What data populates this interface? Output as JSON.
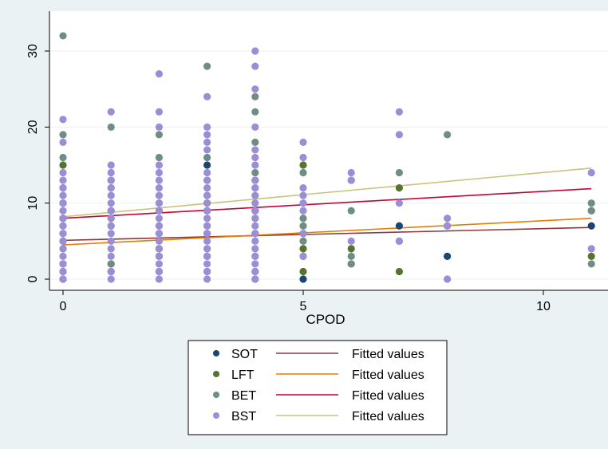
{
  "chart_data": {
    "type": "scatter",
    "xlabel": "CPOD",
    "ylabel": "",
    "xlim": [
      -0.4,
      11.4
    ],
    "ylim": [
      -1.5,
      33
    ],
    "xticks": [
      0,
      5,
      10
    ],
    "yticks": [
      0,
      10,
      20,
      30
    ],
    "grid": "horizontal",
    "legend_position": "bottom",
    "series": [
      {
        "name": "SOT",
        "color": "#1a476f",
        "points": [
          [
            0,
            0
          ],
          [
            0,
            2
          ],
          [
            0,
            5
          ],
          [
            0,
            8
          ],
          [
            1,
            1
          ],
          [
            1,
            9
          ],
          [
            2,
            4
          ],
          [
            3,
            3
          ],
          [
            3,
            9
          ],
          [
            3,
            15
          ],
          [
            4,
            9
          ],
          [
            5,
            0
          ],
          [
            7,
            7
          ],
          [
            8,
            3
          ],
          [
            11,
            7
          ]
        ]
      },
      {
        "name": "LFT",
        "color": "#55752f",
        "points": [
          [
            0,
            1
          ],
          [
            0,
            4
          ],
          [
            0,
            6
          ],
          [
            0,
            10
          ],
          [
            0,
            15
          ],
          [
            1,
            2
          ],
          [
            1,
            7
          ],
          [
            1,
            13
          ],
          [
            2,
            1
          ],
          [
            2,
            3
          ],
          [
            2,
            7
          ],
          [
            2,
            9
          ],
          [
            3,
            1
          ],
          [
            3,
            6
          ],
          [
            3,
            10
          ],
          [
            4,
            1
          ],
          [
            4,
            6
          ],
          [
            4,
            9
          ],
          [
            4,
            13
          ],
          [
            5,
            1
          ],
          [
            5,
            4
          ],
          [
            5,
            6
          ],
          [
            5,
            15
          ],
          [
            6,
            2
          ],
          [
            6,
            4
          ],
          [
            7,
            1
          ],
          [
            7,
            12
          ],
          [
            11,
            3
          ],
          [
            11,
            9
          ]
        ]
      },
      {
        "name": "BET",
        "color": "#6e8e84",
        "points": [
          [
            0,
            2
          ],
          [
            0,
            5
          ],
          [
            0,
            7
          ],
          [
            0,
            10
          ],
          [
            0,
            12
          ],
          [
            0,
            16
          ],
          [
            0,
            19
          ],
          [
            0,
            32
          ],
          [
            1,
            2
          ],
          [
            1,
            8
          ],
          [
            1,
            12
          ],
          [
            1,
            20
          ],
          [
            2,
            1
          ],
          [
            2,
            6
          ],
          [
            2,
            10
          ],
          [
            2,
            16
          ],
          [
            2,
            19
          ],
          [
            3,
            4
          ],
          [
            3,
            7
          ],
          [
            3,
            11
          ],
          [
            3,
            13
          ],
          [
            3,
            16
          ],
          [
            3,
            28
          ],
          [
            4,
            0
          ],
          [
            4,
            3
          ],
          [
            4,
            8
          ],
          [
            4,
            12
          ],
          [
            4,
            14
          ],
          [
            4,
            18
          ],
          [
            4,
            22
          ],
          [
            4,
            24
          ],
          [
            5,
            3
          ],
          [
            5,
            5
          ],
          [
            5,
            7
          ],
          [
            5,
            8
          ],
          [
            5,
            14
          ],
          [
            6,
            2
          ],
          [
            6,
            3
          ],
          [
            6,
            9
          ],
          [
            6,
            13
          ],
          [
            7,
            5
          ],
          [
            7,
            14
          ],
          [
            8,
            7
          ],
          [
            8,
            19
          ],
          [
            11,
            2
          ],
          [
            11,
            9
          ],
          [
            11,
            10
          ]
        ]
      },
      {
        "name": "BST",
        "color": "#9a8fd6",
        "points": [
          [
            0,
            0
          ],
          [
            0,
            1
          ],
          [
            0,
            2
          ],
          [
            0,
            3
          ],
          [
            0,
            4
          ],
          [
            0,
            5
          ],
          [
            0,
            6
          ],
          [
            0,
            7
          ],
          [
            0,
            8
          ],
          [
            0,
            9
          ],
          [
            0,
            10
          ],
          [
            0,
            11
          ],
          [
            0,
            12
          ],
          [
            0,
            13
          ],
          [
            0,
            14
          ],
          [
            0,
            18
          ],
          [
            0,
            21
          ],
          [
            1,
            0
          ],
          [
            1,
            1
          ],
          [
            1,
            3
          ],
          [
            1,
            4
          ],
          [
            1,
            5
          ],
          [
            1,
            6
          ],
          [
            1,
            7
          ],
          [
            1,
            8
          ],
          [
            1,
            9
          ],
          [
            1,
            10
          ],
          [
            1,
            11
          ],
          [
            1,
            12
          ],
          [
            1,
            13
          ],
          [
            1,
            14
          ],
          [
            1,
            15
          ],
          [
            1,
            22
          ],
          [
            2,
            0
          ],
          [
            2,
            1
          ],
          [
            2,
            2
          ],
          [
            2,
            3
          ],
          [
            2,
            4
          ],
          [
            2,
            5
          ],
          [
            2,
            6
          ],
          [
            2,
            7
          ],
          [
            2,
            8
          ],
          [
            2,
            9
          ],
          [
            2,
            10
          ],
          [
            2,
            11
          ],
          [
            2,
            12
          ],
          [
            2,
            13
          ],
          [
            2,
            14
          ],
          [
            2,
            15
          ],
          [
            2,
            20
          ],
          [
            2,
            22
          ],
          [
            2,
            27
          ],
          [
            3,
            0
          ],
          [
            3,
            1
          ],
          [
            3,
            2
          ],
          [
            3,
            3
          ],
          [
            3,
            4
          ],
          [
            3,
            5
          ],
          [
            3,
            6
          ],
          [
            3,
            7
          ],
          [
            3,
            8
          ],
          [
            3,
            9
          ],
          [
            3,
            10
          ],
          [
            3,
            11
          ],
          [
            3,
            12
          ],
          [
            3,
            13
          ],
          [
            3,
            14
          ],
          [
            3,
            17
          ],
          [
            3,
            18
          ],
          [
            3,
            19
          ],
          [
            3,
            20
          ],
          [
            3,
            24
          ],
          [
            4,
            0
          ],
          [
            4,
            1
          ],
          [
            4,
            2
          ],
          [
            4,
            3
          ],
          [
            4,
            4
          ],
          [
            4,
            5
          ],
          [
            4,
            6
          ],
          [
            4,
            7
          ],
          [
            4,
            8
          ],
          [
            4,
            9
          ],
          [
            4,
            10
          ],
          [
            4,
            11
          ],
          [
            4,
            12
          ],
          [
            4,
            13
          ],
          [
            4,
            15
          ],
          [
            4,
            16
          ],
          [
            4,
            17
          ],
          [
            4,
            20
          ],
          [
            4,
            25
          ],
          [
            4,
            28
          ],
          [
            4,
            30
          ],
          [
            5,
            3
          ],
          [
            5,
            6
          ],
          [
            5,
            9
          ],
          [
            5,
            10
          ],
          [
            5,
            11
          ],
          [
            5,
            12
          ],
          [
            5,
            16
          ],
          [
            5,
            18
          ],
          [
            6,
            5
          ],
          [
            6,
            13
          ],
          [
            6,
            14
          ],
          [
            7,
            5
          ],
          [
            7,
            10
          ],
          [
            7,
            19
          ],
          [
            7,
            22
          ],
          [
            8,
            0
          ],
          [
            8,
            7
          ],
          [
            8,
            8
          ],
          [
            11,
            4
          ],
          [
            11,
            14
          ]
        ]
      }
    ],
    "fitted_lines": [
      {
        "name": "Fitted values",
        "color": "#90353b",
        "x": [
          0,
          11
        ],
        "y": [
          5.1,
          6.8
        ]
      },
      {
        "name": "Fitted values",
        "color": "#e37e00",
        "x": [
          0,
          11
        ],
        "y": [
          4.5,
          8.0
        ]
      },
      {
        "name": "Fitted values",
        "color": "#c10534",
        "x": [
          0,
          11
        ],
        "y": [
          8.0,
          11.9
        ]
      },
      {
        "name": "Fitted values",
        "color": "#cac27e",
        "x": [
          0,
          11
        ],
        "y": [
          8.2,
          14.6
        ]
      }
    ]
  }
}
